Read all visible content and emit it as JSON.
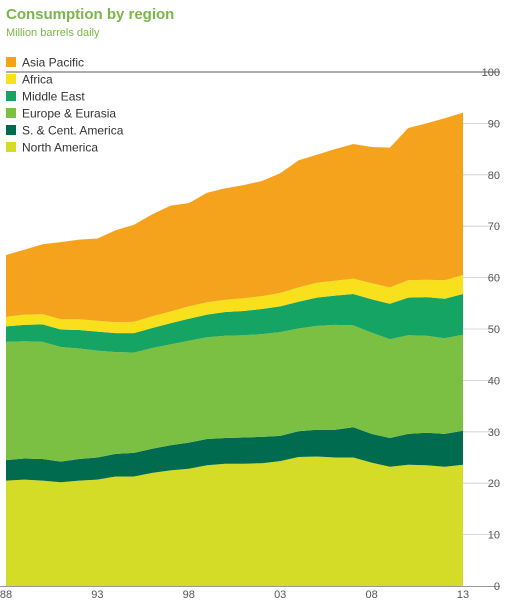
{
  "chart_data": {
    "type": "area",
    "title": "Consumption by region",
    "subtitle": "Million barrels daily",
    "stacked": true,
    "x": [
      1988,
      1989,
      1990,
      1991,
      1992,
      1993,
      1994,
      1995,
      1996,
      1997,
      1998,
      1999,
      2000,
      2001,
      2002,
      2003,
      2004,
      2005,
      2006,
      2007,
      2008,
      2009,
      2010,
      2011,
      2012,
      2013
    ],
    "x_tick_labels": [
      "88",
      "93",
      "98",
      "03",
      "08",
      "13"
    ],
    "x_ticks": [
      1988,
      1993,
      1998,
      2003,
      2008,
      2013
    ],
    "y_ticks": [
      0,
      10,
      20,
      30,
      40,
      50,
      60,
      70,
      80,
      90,
      100
    ],
    "ylim": [
      0,
      100
    ],
    "legend_position": "top-left",
    "series": [
      {
        "name": "North America",
        "color": "#d4dc28",
        "values": [
          20.5,
          20.7,
          20.5,
          20.2,
          20.5,
          20.7,
          21.3,
          21.3,
          22.0,
          22.5,
          22.8,
          23.5,
          23.8,
          23.8,
          23.9,
          24.3,
          25.1,
          25.2,
          25.0,
          25.0,
          24.0,
          23.2,
          23.6,
          23.5,
          23.2,
          23.6
        ]
      },
      {
        "name": "S. & Cent. America",
        "color": "#006b4f",
        "values": [
          4.0,
          4.1,
          4.2,
          4.0,
          4.2,
          4.3,
          4.4,
          4.6,
          4.7,
          4.9,
          5.1,
          5.1,
          5.0,
          5.1,
          5.1,
          4.9,
          5.0,
          5.2,
          5.4,
          5.9,
          5.6,
          5.6,
          6.0,
          6.3,
          6.4,
          6.6
        ]
      },
      {
        "name": "Europe & Eurasia",
        "color": "#7cc043",
        "values": [
          23.0,
          22.8,
          22.8,
          22.3,
          21.5,
          20.8,
          19.8,
          19.5,
          19.6,
          19.6,
          19.8,
          19.8,
          19.9,
          19.9,
          20.0,
          20.2,
          20.0,
          20.2,
          20.4,
          19.8,
          19.7,
          19.2,
          19.2,
          18.9,
          18.6,
          18.7
        ]
      },
      {
        "name": "Middle East",
        "color": "#15a464",
        "values": [
          3.0,
          3.2,
          3.4,
          3.4,
          3.6,
          3.7,
          3.7,
          3.8,
          3.9,
          4.1,
          4.3,
          4.4,
          4.6,
          4.7,
          4.9,
          5.0,
          5.2,
          5.5,
          5.7,
          6.1,
          6.5,
          6.9,
          7.3,
          7.5,
          7.7,
          7.9
        ]
      },
      {
        "name": "Africa",
        "color": "#f8e01c",
        "values": [
          1.9,
          2.0,
          2.0,
          2.0,
          2.1,
          2.1,
          2.1,
          2.2,
          2.3,
          2.3,
          2.4,
          2.4,
          2.4,
          2.5,
          2.5,
          2.6,
          2.8,
          2.9,
          2.9,
          3.0,
          3.1,
          3.2,
          3.4,
          3.4,
          3.6,
          3.7
        ]
      },
      {
        "name": "Asia Pacific",
        "color": "#f5a31c",
        "values": [
          12.0,
          12.6,
          13.6,
          15.0,
          15.5,
          16.0,
          17.9,
          18.9,
          19.8,
          20.6,
          20.1,
          21.3,
          21.7,
          22.0,
          22.4,
          23.3,
          24.7,
          24.9,
          25.6,
          26.2,
          26.5,
          27.2,
          29.6,
          30.4,
          31.5,
          31.6
        ]
      }
    ]
  }
}
